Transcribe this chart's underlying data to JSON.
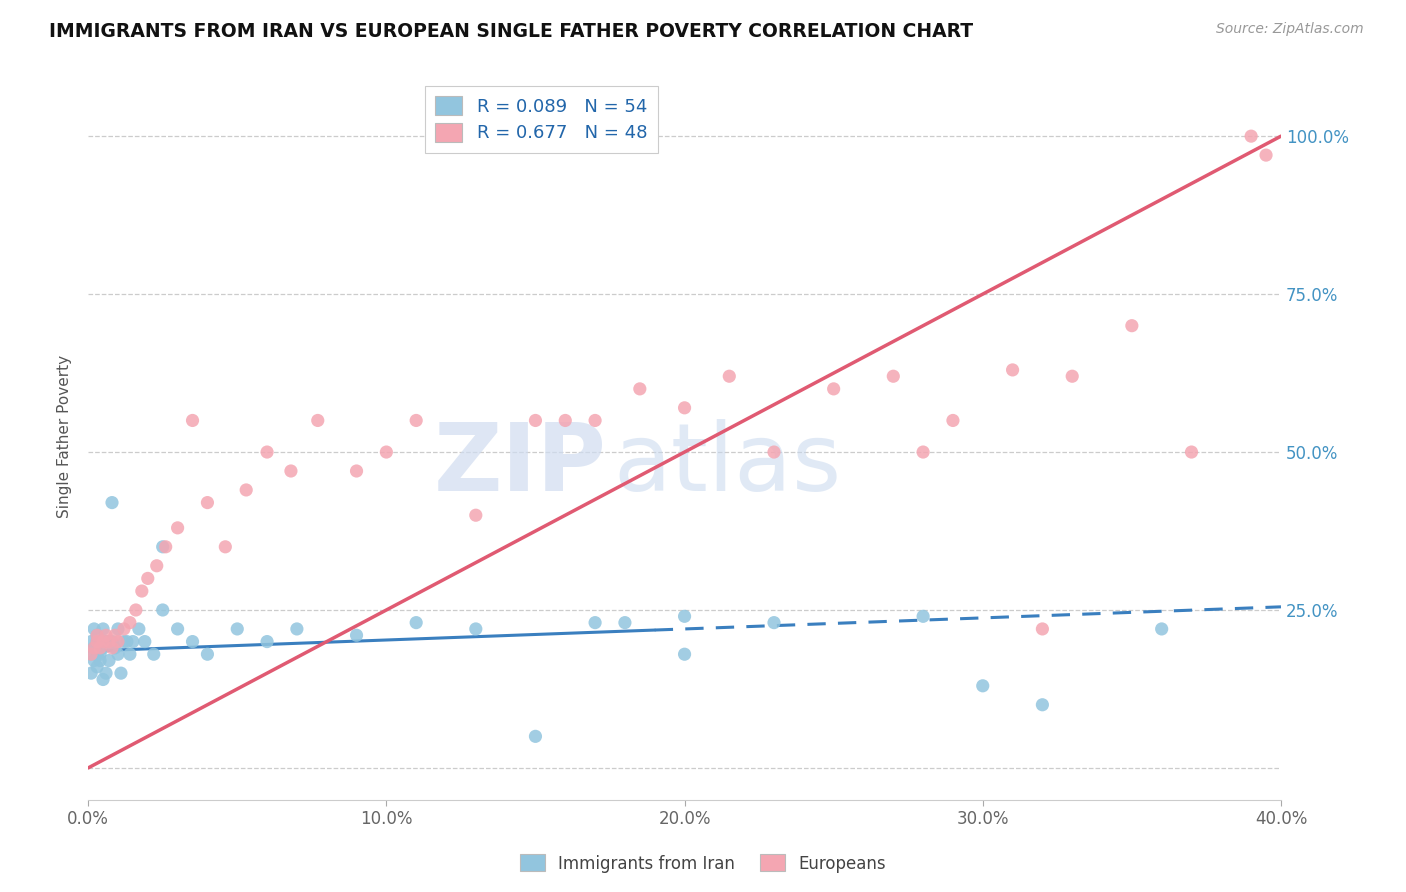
{
  "title": "IMMIGRANTS FROM IRAN VS EUROPEAN SINGLE FATHER POVERTY CORRELATION CHART",
  "source": "Source: ZipAtlas.com",
  "ylabel": "Single Father Poverty",
  "xlim": [
    0.0,
    0.4
  ],
  "ylim": [
    -0.05,
    1.1
  ],
  "yticks": [
    0.0,
    0.25,
    0.5,
    0.75,
    1.0
  ],
  "ytick_labels": [
    "",
    "25.0%",
    "50.0%",
    "75.0%",
    "100.0%"
  ],
  "xticks": [
    0.0,
    0.1,
    0.2,
    0.3,
    0.4
  ],
  "xtick_labels": [
    "0.0%",
    "10.0%",
    "20.0%",
    "30.0%",
    "40.0%"
  ],
  "blue_R": 0.089,
  "blue_N": 54,
  "pink_R": 0.677,
  "pink_N": 48,
  "blue_color": "#92C5DE",
  "pink_color": "#F4A6B2",
  "blue_line_color": "#3A7FBF",
  "pink_line_color": "#E05A72",
  "legend_label_blue": "Immigrants from Iran",
  "legend_label_pink": "Europeans",
  "watermark_zip": "ZIP",
  "watermark_atlas": "atlas",
  "blue_scatter_x": [
    0.001,
    0.001,
    0.001,
    0.002,
    0.002,
    0.002,
    0.003,
    0.003,
    0.003,
    0.003,
    0.004,
    0.004,
    0.004,
    0.005,
    0.005,
    0.005,
    0.006,
    0.006,
    0.007,
    0.007,
    0.008,
    0.008,
    0.009,
    0.01,
    0.01,
    0.011,
    0.012,
    0.013,
    0.014,
    0.015,
    0.017,
    0.019,
    0.022,
    0.025,
    0.03,
    0.035,
    0.04,
    0.05,
    0.06,
    0.07,
    0.09,
    0.11,
    0.13,
    0.15,
    0.17,
    0.2,
    0.23,
    0.025,
    0.18,
    0.28,
    0.32,
    0.36,
    0.3,
    0.2
  ],
  "blue_scatter_y": [
    0.18,
    0.2,
    0.15,
    0.17,
    0.22,
    0.19,
    0.21,
    0.18,
    0.16,
    0.2,
    0.17,
    0.2,
    0.18,
    0.14,
    0.19,
    0.22,
    0.2,
    0.15,
    0.2,
    0.17,
    0.2,
    0.42,
    0.19,
    0.18,
    0.22,
    0.15,
    0.2,
    0.2,
    0.18,
    0.2,
    0.22,
    0.2,
    0.18,
    0.25,
    0.22,
    0.2,
    0.18,
    0.22,
    0.2,
    0.22,
    0.21,
    0.23,
    0.22,
    0.05,
    0.23,
    0.24,
    0.23,
    0.35,
    0.23,
    0.24,
    0.1,
    0.22,
    0.13,
    0.18
  ],
  "pink_scatter_x": [
    0.001,
    0.002,
    0.003,
    0.003,
    0.004,
    0.005,
    0.006,
    0.007,
    0.008,
    0.009,
    0.01,
    0.012,
    0.014,
    0.016,
    0.018,
    0.02,
    0.023,
    0.026,
    0.03,
    0.035,
    0.04,
    0.046,
    0.053,
    0.06,
    0.068,
    0.077,
    0.09,
    0.1,
    0.11,
    0.13,
    0.15,
    0.17,
    0.185,
    0.2,
    0.215,
    0.23,
    0.25,
    0.27,
    0.29,
    0.31,
    0.33,
    0.35,
    0.37,
    0.39,
    0.16,
    0.28,
    0.32,
    0.395
  ],
  "pink_scatter_y": [
    0.18,
    0.19,
    0.2,
    0.21,
    0.19,
    0.2,
    0.21,
    0.2,
    0.19,
    0.21,
    0.2,
    0.22,
    0.23,
    0.25,
    0.28,
    0.3,
    0.32,
    0.35,
    0.38,
    0.55,
    0.42,
    0.35,
    0.44,
    0.5,
    0.47,
    0.55,
    0.47,
    0.5,
    0.55,
    0.4,
    0.55,
    0.55,
    0.6,
    0.57,
    0.62,
    0.5,
    0.6,
    0.62,
    0.55,
    0.63,
    0.62,
    0.7,
    0.5,
    1.0,
    0.55,
    0.5,
    0.22,
    0.97
  ],
  "pink_line_x0": 0.0,
  "pink_line_y0": 0.0,
  "pink_line_x1": 0.4,
  "pink_line_y1": 1.0,
  "blue_line_x0": 0.0,
  "blue_line_y0": 0.185,
  "blue_line_x1": 0.4,
  "blue_line_y1": 0.255,
  "blue_dash_split": 0.19
}
